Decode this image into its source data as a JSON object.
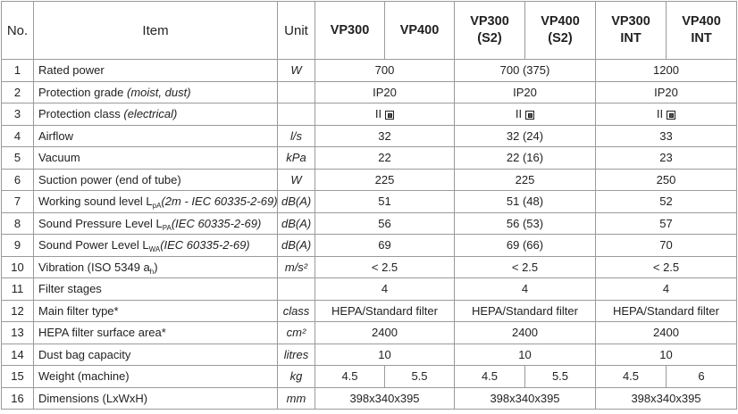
{
  "table": {
    "header": {
      "no": "No.",
      "item": "Item",
      "unit": "Unit",
      "models": [
        [
          [
            "VP300"
          ],
          [
            "VP400"
          ]
        ],
        [
          [
            "VP300",
            "(S2)"
          ],
          [
            "VP400",
            "(S2)"
          ]
        ],
        [
          [
            "VP300",
            "INT"
          ],
          [
            "VP400",
            "INT"
          ]
        ]
      ]
    },
    "rows": [
      {
        "no": "1",
        "item": [
          {
            "text": "Rated power"
          }
        ],
        "unit": "W",
        "values": [
          [
            "700"
          ],
          [
            "700 (375)"
          ],
          [
            "1200"
          ]
        ]
      },
      {
        "no": "2",
        "item": [
          {
            "text": "Protection grade "
          },
          {
            "italic": "(moist, dust)"
          }
        ],
        "unit": "",
        "values": [
          [
            "IP20"
          ],
          [
            "IP20"
          ],
          [
            "IP20"
          ]
        ]
      },
      {
        "no": "3",
        "item": [
          {
            "text": "Protection class "
          },
          {
            "italic": "(electrical)"
          }
        ],
        "unit": "",
        "values": [
          [
            "II"
          ],
          [
            "II"
          ],
          [
            "II"
          ]
        ]
      },
      {
        "no": "4",
        "item": [
          {
            "text": "Airflow"
          }
        ],
        "unit": "l/s",
        "values": [
          [
            "32"
          ],
          [
            "32 (24)"
          ],
          [
            "33"
          ]
        ]
      },
      {
        "no": "5",
        "item": [
          {
            "text": "Vacuum"
          }
        ],
        "unit": "kPa",
        "values": [
          [
            "22"
          ],
          [
            "22 (16)"
          ],
          [
            "23"
          ]
        ]
      },
      {
        "no": "6",
        "item": [
          {
            "text": "Suction power (end of tube)"
          }
        ],
        "unit": "W",
        "values": [
          [
            "225"
          ],
          [
            "225"
          ],
          [
            "250"
          ]
        ]
      },
      {
        "no": "7",
        "item": [
          {
            "text": "Working sound level L"
          },
          {
            "sub": "pA"
          },
          {
            "italic": "(2m - IEC 60335-2-69)"
          }
        ],
        "unit": "dB(A)",
        "values": [
          [
            "51"
          ],
          [
            "51 (48)"
          ],
          [
            "52"
          ]
        ]
      },
      {
        "no": "8",
        "item": [
          {
            "text": "Sound Pressure Level L"
          },
          {
            "sub": "PA"
          },
          {
            "italic": "(IEC 60335-2-69)"
          }
        ],
        "unit": "dB(A)",
        "values": [
          [
            "56"
          ],
          [
            "56 (53)"
          ],
          [
            "57"
          ]
        ]
      },
      {
        "no": "9",
        "item": [
          {
            "text": "Sound Power Level L"
          },
          {
            "sub": "WA"
          },
          {
            "italic": "(IEC 60335-2-69)"
          }
        ],
        "unit": "dB(A)",
        "values": [
          [
            "69"
          ],
          [
            "69 (66)"
          ],
          [
            "70"
          ]
        ]
      },
      {
        "no": "10",
        "item": [
          {
            "text": "Vibration (ISO 5349 a"
          },
          {
            "sub": "h"
          },
          {
            "text": ")"
          }
        ],
        "unit": "m/s²",
        "values": [
          [
            "< 2.5"
          ],
          [
            "< 2.5"
          ],
          [
            "< 2.5"
          ]
        ]
      },
      {
        "no": "11",
        "item": [
          {
            "text": "Filter stages"
          }
        ],
        "unit": "",
        "values": [
          [
            "4"
          ],
          [
            "4"
          ],
          [
            "4"
          ]
        ]
      },
      {
        "no": "12",
        "item": [
          {
            "text": "Main filter type*"
          }
        ],
        "unit": "class",
        "values": [
          [
            "HEPA/Standard filter"
          ],
          [
            "HEPA/Standard filter"
          ],
          [
            "HEPA/Standard filter"
          ]
        ]
      },
      {
        "no": "13",
        "item": [
          {
            "text": "HEPA filter surface area*"
          }
        ],
        "unit": "cm²",
        "values": [
          [
            "2400"
          ],
          [
            "2400"
          ],
          [
            "2400"
          ]
        ]
      },
      {
        "no": "14",
        "item": [
          {
            "text": "Dust bag capacity"
          }
        ],
        "unit": "litres",
        "values": [
          [
            "10"
          ],
          [
            "10"
          ],
          [
            "10"
          ]
        ]
      },
      {
        "no": "15",
        "item": [
          {
            "text": "Weight (machine)"
          }
        ],
        "unit": "kg",
        "values": [
          [
            "4.5",
            "5.5"
          ],
          [
            "4.5",
            "5.5"
          ],
          [
            "4.5",
            "6"
          ]
        ]
      },
      {
        "no": "16",
        "item": [
          {
            "text": "Dimensions (LxWxH)"
          }
        ],
        "unit": "mm",
        "values": [
          [
            "398x340x395"
          ],
          [
            "398x340x395"
          ],
          [
            "398x340x395"
          ]
        ]
      }
    ]
  }
}
